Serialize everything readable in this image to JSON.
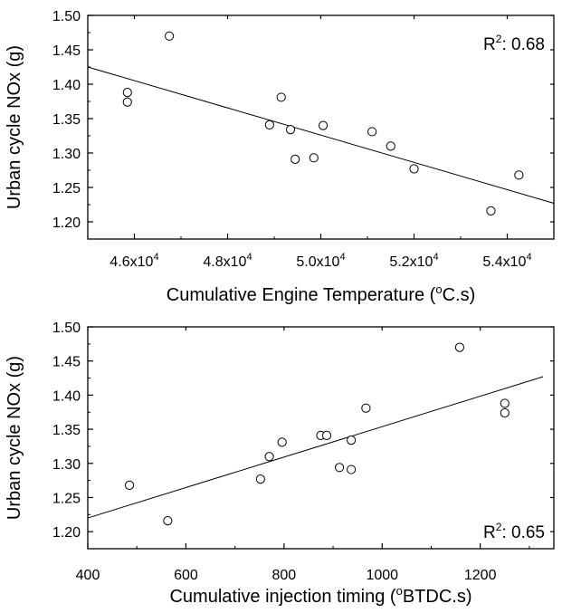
{
  "chart_data": [
    {
      "type": "scatter",
      "xlabel": "Cumulative Engine Temperature (",
      "xlabel_sup": "o",
      "xlabel_tail": "C.s)",
      "ylabel": "Urban cycle NOx (g)",
      "annotation_prefix": "R",
      "annotation_sup": "2",
      "annotation_tail": ": 0.68",
      "xlim": [
        45000,
        55000
      ],
      "ylim": [
        1.175,
        1.5
      ],
      "x_ticks": [
        46000,
        48000,
        50000,
        52000,
        54000
      ],
      "x_tick_labels": [
        {
          "base": "4.6x10",
          "exp": "4"
        },
        {
          "base": "4.8x10",
          "exp": "4"
        },
        {
          "base": "5.0x10",
          "exp": "4"
        },
        {
          "base": "5.2x10",
          "exp": "4"
        },
        {
          "base": "5.4x10",
          "exp": "4"
        }
      ],
      "y_ticks": [
        1.2,
        1.25,
        1.3,
        1.35,
        1.4,
        1.45,
        1.5
      ],
      "y_tick_labels": [
        "1.20",
        "1.25",
        "1.30",
        "1.35",
        "1.40",
        "1.45",
        "1.50"
      ],
      "points": [
        {
          "x": 45850,
          "y": 1.388
        },
        {
          "x": 45850,
          "y": 1.374
        },
        {
          "x": 46750,
          "y": 1.47
        },
        {
          "x": 48900,
          "y": 1.341
        },
        {
          "x": 49150,
          "y": 1.381
        },
        {
          "x": 49350,
          "y": 1.334
        },
        {
          "x": 49450,
          "y": 1.291
        },
        {
          "x": 49850,
          "y": 1.293
        },
        {
          "x": 50050,
          "y": 1.34
        },
        {
          "x": 51100,
          "y": 1.331
        },
        {
          "x": 51500,
          "y": 1.31
        },
        {
          "x": 52000,
          "y": 1.277
        },
        {
          "x": 53650,
          "y": 1.216
        },
        {
          "x": 54250,
          "y": 1.268
        }
      ],
      "fit_line": [
        {
          "x": 45000,
          "y": 1.425
        },
        {
          "x": 55000,
          "y": 1.227
        }
      ]
    },
    {
      "type": "scatter",
      "xlabel": "Cumulative injection timing (",
      "xlabel_sup": "o",
      "xlabel_tail": "BTDC.s)",
      "ylabel": "Urban cycle NOx (g)",
      "annotation_prefix": "R",
      "annotation_sup": "2",
      "annotation_tail": ": 0.65",
      "xlim": [
        400,
        1350
      ],
      "ylim": [
        1.175,
        1.5
      ],
      "x_ticks": [
        400,
        600,
        800,
        1000,
        1200
      ],
      "x_tick_labels": [
        "400",
        "600",
        "800",
        "1000",
        "1200"
      ],
      "y_ticks": [
        1.2,
        1.25,
        1.3,
        1.35,
        1.4,
        1.45,
        1.5
      ],
      "y_tick_labels": [
        "1.20",
        "1.25",
        "1.30",
        "1.35",
        "1.40",
        "1.45",
        "1.50"
      ],
      "points": [
        {
          "x": 485,
          "y": 1.268
        },
        {
          "x": 563,
          "y": 1.216
        },
        {
          "x": 752,
          "y": 1.277
        },
        {
          "x": 770,
          "y": 1.31
        },
        {
          "x": 796,
          "y": 1.331
        },
        {
          "x": 875,
          "y": 1.341
        },
        {
          "x": 887,
          "y": 1.341
        },
        {
          "x": 913,
          "y": 1.294
        },
        {
          "x": 937,
          "y": 1.334
        },
        {
          "x": 937,
          "y": 1.291
        },
        {
          "x": 967,
          "y": 1.381
        },
        {
          "x": 1158,
          "y": 1.47
        },
        {
          "x": 1250,
          "y": 1.388
        },
        {
          "x": 1250,
          "y": 1.374
        }
      ],
      "fit_line": [
        {
          "x": 400,
          "y": 1.22
        },
        {
          "x": 1328,
          "y": 1.427
        }
      ]
    }
  ]
}
